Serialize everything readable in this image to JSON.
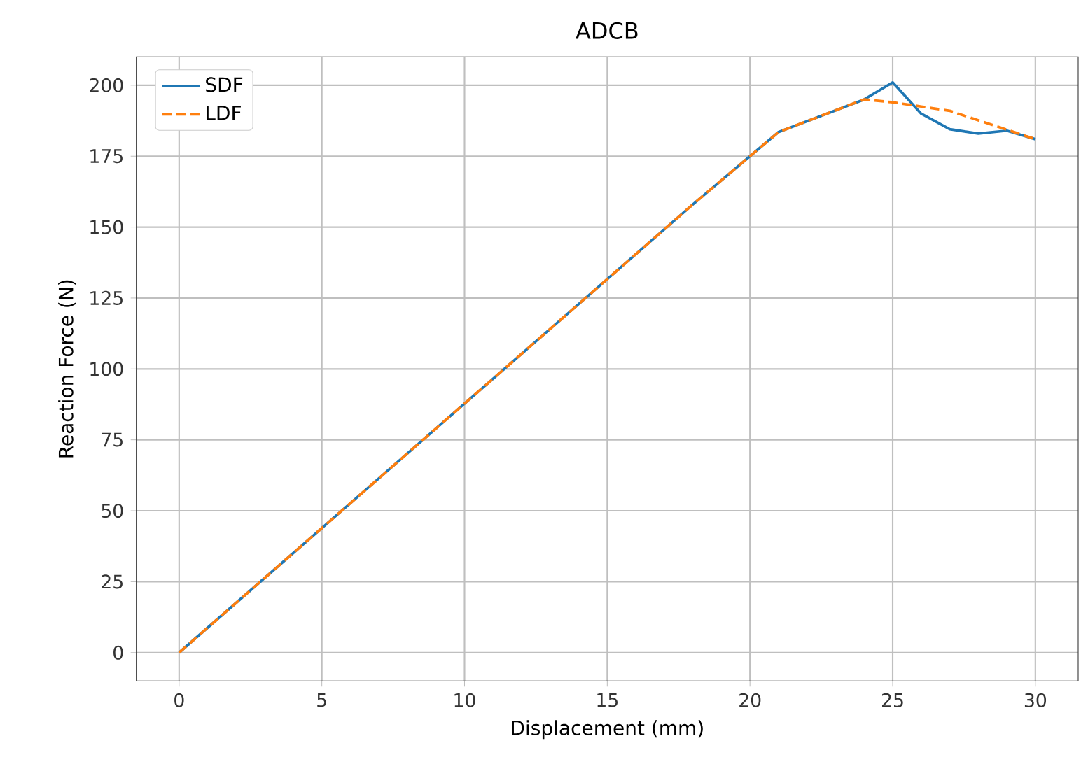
{
  "chart_data": {
    "type": "line",
    "title": "ADCB",
    "xlabel": "Displacement (mm)",
    "ylabel": "Reaction Force (N)",
    "series": [
      {
        "name": "SDF",
        "color": "#1f77b4",
        "line_style": "solid",
        "x": [
          0,
          18,
          20,
          21,
          24,
          25,
          26,
          27,
          28,
          29,
          30
        ],
        "values": [
          0,
          158,
          175,
          183.5,
          195,
          201,
          190,
          184.5,
          183,
          184,
          181
        ]
      },
      {
        "name": "LDF",
        "color": "#ff7f0e",
        "line_style": "dashed",
        "x": [
          0,
          18,
          20,
          21,
          24,
          25,
          26,
          27,
          30
        ],
        "values": [
          0,
          158,
          175,
          183.5,
          195,
          194,
          192.5,
          191,
          181
        ]
      }
    ],
    "xlim": [
      -1.5,
      31.5
    ],
    "ylim": [
      -10,
      210
    ],
    "xticks": [
      0,
      5,
      10,
      15,
      20,
      25,
      30
    ],
    "yticks": [
      0,
      25,
      50,
      75,
      100,
      125,
      150,
      175,
      200
    ],
    "grid": true,
    "legend": "top left",
    "marker": "none"
  }
}
